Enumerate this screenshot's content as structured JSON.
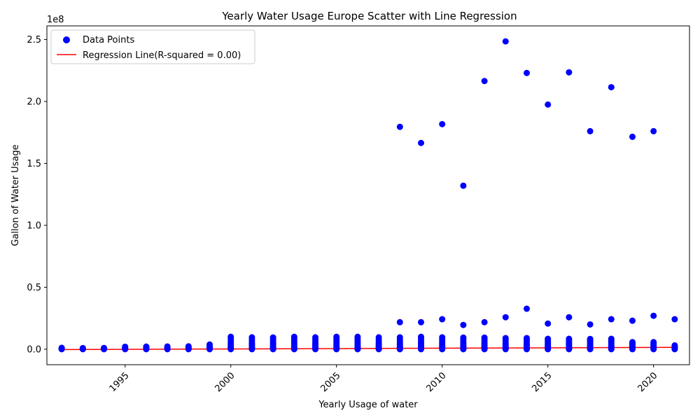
{
  "chart_data": {
    "type": "scatter",
    "title": "Yearly Water Usage Europe Scatter with Line Regression",
    "xlabel": "Yearly Usage of water",
    "ylabel": "Gallon of Water Usage",
    "y_scale_label": "1e8",
    "xlim": [
      1991.3,
      2021.7
    ],
    "ylim": [
      -12500000,
      261000000
    ],
    "x_ticks": [
      1995,
      2000,
      2005,
      2010,
      2015,
      2020
    ],
    "x_tick_labels": [
      "1995",
      "2000",
      "2005",
      "2010",
      "2015",
      "2020"
    ],
    "y_ticks": [
      0,
      50000000,
      100000000,
      150000000,
      200000000,
      250000000
    ],
    "y_tick_labels": [
      "0.0",
      "0.5",
      "1.0",
      "1.5",
      "2.0",
      "2.5"
    ],
    "grid": false,
    "legend_position": "top-left",
    "colors": {
      "points": "#0000ff",
      "regression": "#ff0000"
    },
    "series": [
      {
        "name": "Data Points",
        "kind": "scatter",
        "points": [
          [
            1992,
            0
          ],
          [
            1992,
            300000
          ],
          [
            1992,
            700000
          ],
          [
            1992,
            1100000
          ],
          [
            1993,
            0
          ],
          [
            1993,
            300000
          ],
          [
            1993,
            600000
          ],
          [
            1993,
            900000
          ],
          [
            1994,
            0
          ],
          [
            1994,
            300000
          ],
          [
            1994,
            600000
          ],
          [
            1994,
            1000000
          ],
          [
            1995,
            0
          ],
          [
            1995,
            400000
          ],
          [
            1995,
            800000
          ],
          [
            1995,
            1400000
          ],
          [
            1995,
            2000000
          ],
          [
            1996,
            0
          ],
          [
            1996,
            400000
          ],
          [
            1996,
            900000
          ],
          [
            1996,
            1500000
          ],
          [
            1996,
            2100000
          ],
          [
            1997,
            0
          ],
          [
            1997,
            400000
          ],
          [
            1997,
            900000
          ],
          [
            1997,
            1500000
          ],
          [
            1997,
            2200000
          ],
          [
            1998,
            0
          ],
          [
            1998,
            400000
          ],
          [
            1998,
            900000
          ],
          [
            1998,
            1600000
          ],
          [
            1998,
            2300000
          ],
          [
            1999,
            0
          ],
          [
            1999,
            500000
          ],
          [
            1999,
            1000000
          ],
          [
            1999,
            1700000
          ],
          [
            1999,
            2600000
          ],
          [
            1999,
            3800000
          ],
          [
            2000,
            0
          ],
          [
            2000,
            600000
          ],
          [
            2000,
            1300000
          ],
          [
            2000,
            2200000
          ],
          [
            2000,
            3300000
          ],
          [
            2000,
            4700000
          ],
          [
            2000,
            6400000
          ],
          [
            2000,
            8200000
          ],
          [
            2000,
            10000000
          ],
          [
            2001,
            0
          ],
          [
            2001,
            600000
          ],
          [
            2001,
            1300000
          ],
          [
            2001,
            2200000
          ],
          [
            2001,
            3300000
          ],
          [
            2001,
            4600000
          ],
          [
            2001,
            6200000
          ],
          [
            2001,
            7900000
          ],
          [
            2001,
            9600000
          ],
          [
            2002,
            0
          ],
          [
            2002,
            600000
          ],
          [
            2002,
            1300000
          ],
          [
            2002,
            2200000
          ],
          [
            2002,
            3300000
          ],
          [
            2002,
            4600000
          ],
          [
            2002,
            6200000
          ],
          [
            2002,
            7900000
          ],
          [
            2002,
            9500000
          ],
          [
            2003,
            0
          ],
          [
            2003,
            600000
          ],
          [
            2003,
            1300000
          ],
          [
            2003,
            2200000
          ],
          [
            2003,
            3300000
          ],
          [
            2003,
            4700000
          ],
          [
            2003,
            6300000
          ],
          [
            2003,
            8100000
          ],
          [
            2003,
            10000000
          ],
          [
            2004,
            0
          ],
          [
            2004,
            600000
          ],
          [
            2004,
            1300000
          ],
          [
            2004,
            2200000
          ],
          [
            2004,
            3300000
          ],
          [
            2004,
            4600000
          ],
          [
            2004,
            6200000
          ],
          [
            2004,
            7900000
          ],
          [
            2004,
            9600000
          ],
          [
            2005,
            0
          ],
          [
            2005,
            600000
          ],
          [
            2005,
            1300000
          ],
          [
            2005,
            2200000
          ],
          [
            2005,
            3300000
          ],
          [
            2005,
            4700000
          ],
          [
            2005,
            6300000
          ],
          [
            2005,
            8100000
          ],
          [
            2005,
            10000000
          ],
          [
            2006,
            0
          ],
          [
            2006,
            600000
          ],
          [
            2006,
            1300000
          ],
          [
            2006,
            2200000
          ],
          [
            2006,
            3300000
          ],
          [
            2006,
            4700000
          ],
          [
            2006,
            6300000
          ],
          [
            2006,
            8100000
          ],
          [
            2006,
            10000000
          ],
          [
            2007,
            0
          ],
          [
            2007,
            600000
          ],
          [
            2007,
            1300000
          ],
          [
            2007,
            2200000
          ],
          [
            2007,
            3300000
          ],
          [
            2007,
            4600000
          ],
          [
            2007,
            6200000
          ],
          [
            2007,
            7900000
          ],
          [
            2007,
            9600000
          ],
          [
            2008,
            0
          ],
          [
            2008,
            600000
          ],
          [
            2008,
            1300000
          ],
          [
            2008,
            2200000
          ],
          [
            2008,
            3300000
          ],
          [
            2008,
            4600000
          ],
          [
            2008,
            6200000
          ],
          [
            2008,
            7900000
          ],
          [
            2008,
            9600000
          ],
          [
            2008,
            21800000
          ],
          [
            2008,
            179500000
          ],
          [
            2009,
            0
          ],
          [
            2009,
            600000
          ],
          [
            2009,
            1300000
          ],
          [
            2009,
            2200000
          ],
          [
            2009,
            3300000
          ],
          [
            2009,
            4700000
          ],
          [
            2009,
            6300000
          ],
          [
            2009,
            8100000
          ],
          [
            2009,
            10000000
          ],
          [
            2009,
            21800000
          ],
          [
            2009,
            166500000
          ],
          [
            2010,
            0
          ],
          [
            2010,
            600000
          ],
          [
            2010,
            1300000
          ],
          [
            2010,
            2200000
          ],
          [
            2010,
            3300000
          ],
          [
            2010,
            4600000
          ],
          [
            2010,
            6200000
          ],
          [
            2010,
            7900000
          ],
          [
            2010,
            9600000
          ],
          [
            2010,
            24200000
          ],
          [
            2010,
            181700000
          ],
          [
            2011,
            0
          ],
          [
            2011,
            600000
          ],
          [
            2011,
            1300000
          ],
          [
            2011,
            2200000
          ],
          [
            2011,
            3300000
          ],
          [
            2011,
            4600000
          ],
          [
            2011,
            6200000
          ],
          [
            2011,
            7900000
          ],
          [
            2011,
            9400000
          ],
          [
            2011,
            19600000
          ],
          [
            2011,
            132000000
          ],
          [
            2012,
            0
          ],
          [
            2012,
            600000
          ],
          [
            2012,
            1300000
          ],
          [
            2012,
            2200000
          ],
          [
            2012,
            3300000
          ],
          [
            2012,
            4600000
          ],
          [
            2012,
            6200000
          ],
          [
            2012,
            7900000
          ],
          [
            2012,
            9400000
          ],
          [
            2012,
            21800000
          ],
          [
            2012,
            216500000
          ],
          [
            2013,
            0
          ],
          [
            2013,
            600000
          ],
          [
            2013,
            1300000
          ],
          [
            2013,
            2200000
          ],
          [
            2013,
            3300000
          ],
          [
            2013,
            4500000
          ],
          [
            2013,
            6000000
          ],
          [
            2013,
            7600000
          ],
          [
            2013,
            9000000
          ],
          [
            2013,
            25800000
          ],
          [
            2013,
            248500000
          ],
          [
            2014,
            0
          ],
          [
            2014,
            600000
          ],
          [
            2014,
            1300000
          ],
          [
            2014,
            2200000
          ],
          [
            2014,
            3300000
          ],
          [
            2014,
            4500000
          ],
          [
            2014,
            6000000
          ],
          [
            2014,
            7600000
          ],
          [
            2014,
            9000000
          ],
          [
            2014,
            32700000
          ],
          [
            2014,
            223000000
          ],
          [
            2015,
            0
          ],
          [
            2015,
            600000
          ],
          [
            2015,
            1300000
          ],
          [
            2015,
            2200000
          ],
          [
            2015,
            3200000
          ],
          [
            2015,
            4400000
          ],
          [
            2015,
            5800000
          ],
          [
            2015,
            7200000
          ],
          [
            2015,
            8400000
          ],
          [
            2015,
            20700000
          ],
          [
            2015,
            197500000
          ],
          [
            2016,
            0
          ],
          [
            2016,
            600000
          ],
          [
            2016,
            1300000
          ],
          [
            2016,
            2200000
          ],
          [
            2016,
            3200000
          ],
          [
            2016,
            4400000
          ],
          [
            2016,
            5800000
          ],
          [
            2016,
            7200000
          ],
          [
            2016,
            8400000
          ],
          [
            2016,
            25800000
          ],
          [
            2016,
            223500000
          ],
          [
            2017,
            0
          ],
          [
            2017,
            600000
          ],
          [
            2017,
            1300000
          ],
          [
            2017,
            2200000
          ],
          [
            2017,
            3200000
          ],
          [
            2017,
            4400000
          ],
          [
            2017,
            5800000
          ],
          [
            2017,
            7200000
          ],
          [
            2017,
            8300000
          ],
          [
            2017,
            20000000
          ],
          [
            2017,
            176000000
          ],
          [
            2018,
            0
          ],
          [
            2018,
            600000
          ],
          [
            2018,
            1300000
          ],
          [
            2018,
            2200000
          ],
          [
            2018,
            3200000
          ],
          [
            2018,
            4400000
          ],
          [
            2018,
            5800000
          ],
          [
            2018,
            7200000
          ],
          [
            2018,
            8400000
          ],
          [
            2018,
            24200000
          ],
          [
            2018,
            211500000
          ],
          [
            2019,
            0
          ],
          [
            2019,
            500000
          ],
          [
            2019,
            1100000
          ],
          [
            2019,
            1800000
          ],
          [
            2019,
            2600000
          ],
          [
            2019,
            3500000
          ],
          [
            2019,
            4600000
          ],
          [
            2019,
            5700000
          ],
          [
            2019,
            23000000
          ],
          [
            2019,
            171500000
          ],
          [
            2020,
            0
          ],
          [
            2020,
            500000
          ],
          [
            2020,
            1100000
          ],
          [
            2020,
            1800000
          ],
          [
            2020,
            2600000
          ],
          [
            2020,
            3500000
          ],
          [
            2020,
            4600000
          ],
          [
            2020,
            5700000
          ],
          [
            2020,
            27000000
          ],
          [
            2020,
            176000000
          ],
          [
            2021,
            0
          ],
          [
            2021,
            400000
          ],
          [
            2021,
            900000
          ],
          [
            2021,
            1500000
          ],
          [
            2021,
            2300000
          ],
          [
            2021,
            3100000
          ],
          [
            2021,
            24200000
          ]
        ]
      },
      {
        "name": "Regression Line(R-squared = 0.00)",
        "kind": "line",
        "points": [
          [
            1992,
            -300000
          ],
          [
            2021,
            1500000
          ]
        ]
      }
    ]
  }
}
